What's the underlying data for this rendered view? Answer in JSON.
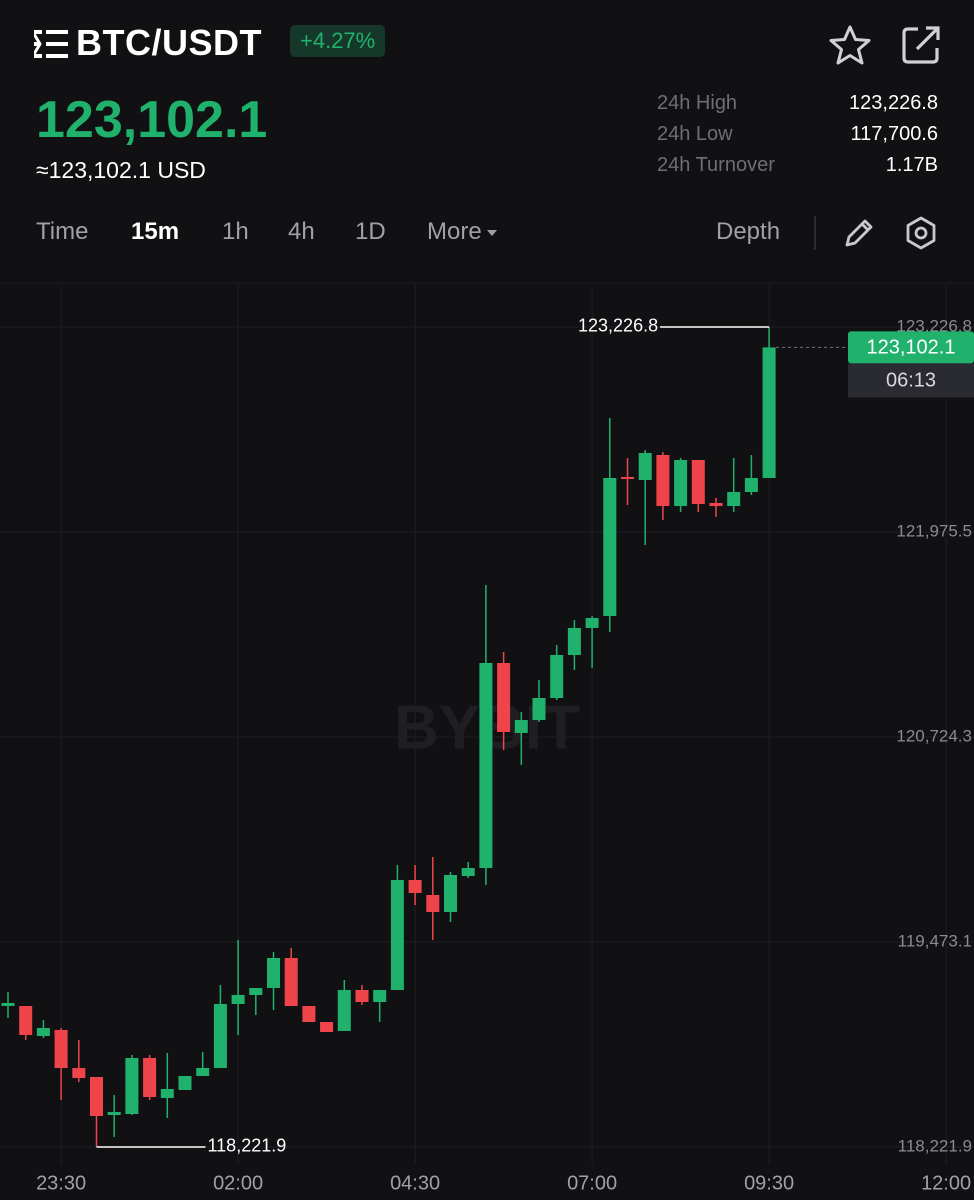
{
  "header": {
    "symbol": "BTC/USDT",
    "change": "+4.27%",
    "price": "123,102.1",
    "price_usd": "≈123,102.1 USD",
    "stats": [
      {
        "label": "24h High",
        "value": "123,226.8"
      },
      {
        "label": "24h Low",
        "value": "117,700.6"
      },
      {
        "label": "24h Turnover",
        "value": "1.17B"
      }
    ]
  },
  "toolbar": {
    "tabs": [
      "Time",
      "15m",
      "1h",
      "4h",
      "1D",
      "More"
    ],
    "active_tab": "15m",
    "depth": "Depth"
  },
  "chart_data": {
    "type": "candlestick",
    "watermark": "BYBIT",
    "up_color": "#20b26c",
    "down_color": "#ef454a",
    "grid": true,
    "categories": [
      null,
      null,
      null,
      "23:30",
      null,
      null,
      null,
      null,
      null,
      null,
      null,
      null,
      null,
      "02:00",
      null,
      null,
      null,
      null,
      null,
      null,
      null,
      null,
      null,
      "04:30",
      null,
      null,
      null,
      null,
      null,
      null,
      null,
      null,
      null,
      "07:00",
      null,
      null,
      null,
      null,
      null,
      null,
      null,
      null,
      null,
      "09:30",
      null,
      null,
      null,
      null,
      null,
      null,
      null,
      null,
      null,
      "12:00"
    ],
    "open": [
      119082.5,
      119082.5,
      118899.4,
      118936.0,
      118704.1,
      118649.1,
      118417.2,
      118423.3,
      118765.1,
      118521.0,
      118569.8,
      118655.2,
      118704.1,
      119094.7,
      119149.6,
      119192.3,
      119375.4,
      119082.5,
      118984.8,
      118929.9,
      119180.1,
      119106.9,
      119180.1,
      119851.5,
      119760.0,
      119656.2,
      119875.9,
      119924.7,
      121175.9,
      120748.7,
      120828.1,
      120962.3,
      121224.8,
      121389.6,
      121462.8,
      122311.2,
      122292.9,
      122445.5,
      122134.2,
      122414.9,
      122152.5,
      122134.2,
      122219.6,
      122305.1,
      null,
      null,
      null,
      null,
      null,
      null,
      null,
      null,
      null,
      null
    ],
    "high": [
      119167.9,
      119082.5,
      118997.0,
      118948.2,
      118875.0,
      118649.1,
      118539.3,
      118783.4,
      118783.4,
      118795.6,
      118655.2,
      118801.7,
      119210.7,
      119485.3,
      119192.3,
      119412.1,
      119436.5,
      119082.5,
      118984.8,
      119241.2,
      119210.7,
      119180.1,
      119943.1,
      119943.1,
      119991.9,
      119900.3,
      119961.4,
      121652.0,
      121243.1,
      120876.9,
      121072.2,
      121285.8,
      121438.4,
      121462.8,
      122671.3,
      122427.1,
      122476.0,
      122463.8,
      122427.1,
      122414.9,
      122183.0,
      122427.1,
      122445.5,
      123226.8,
      null,
      null,
      null,
      null,
      null,
      null,
      null,
      null,
      null,
      null
    ],
    "low": [
      119009.2,
      118875.0,
      118887.2,
      118508.8,
      118618.6,
      118221.9,
      118282.9,
      118417.2,
      118508.8,
      118398.9,
      118569.8,
      118655.2,
      118704.1,
      118905.5,
      119027.5,
      119058.1,
      119082.5,
      118984.8,
      118923.8,
      118929.9,
      119088.6,
      118984.8,
      119180.1,
      119698.9,
      119485.3,
      119595.2,
      119863.7,
      119821.0,
      120644.9,
      120553.4,
      120815.8,
      120950.1,
      121133.2,
      121145.4,
      121365.2,
      122140.3,
      121896.1,
      122048.7,
      122097.6,
      122097.6,
      122067.0,
      122097.6,
      122201.3,
      122305.1,
      null,
      null,
      null,
      null,
      null,
      null,
      null,
      null,
      null,
      null
    ],
    "close": [
      119100.8,
      118905.5,
      118948.2,
      118704.1,
      118643.0,
      118411.1,
      118435.5,
      118765.1,
      118527.1,
      118575.9,
      118655.2,
      118704.1,
      119094.7,
      119149.6,
      119192.3,
      119375.4,
      119082.5,
      118984.8,
      118923.8,
      119180.1,
      119106.9,
      119180.1,
      119851.5,
      119772.2,
      119656.2,
      119882.0,
      119924.7,
      121175.9,
      120754.8,
      120828.1,
      120962.3,
      121224.8,
      121389.6,
      121450.6,
      122305.1,
      122299.0,
      122457.7,
      122134.2,
      122414.9,
      122146.4,
      122134.2,
      122219.6,
      122305.1,
      123102.1,
      null,
      null,
      null,
      null,
      null,
      null,
      null,
      null,
      null,
      null
    ],
    "ylim": [
      118112.0,
      123483.0
    ],
    "yticks": [
      {
        "value": 118221.9,
        "label": "118,221.9"
      },
      {
        "value": 119473.1,
        "label": "119,473.1"
      },
      {
        "value": 120724.3,
        "label": "120,724.3"
      },
      {
        "value": 121975.5,
        "label": "121,975.5"
      },
      {
        "value": 123226.8,
        "label": "123,226.8"
      }
    ],
    "high_marker": {
      "index": 43,
      "value": 123226.8,
      "label": "123,226.8"
    },
    "low_marker": {
      "index": 5,
      "value": 118221.9,
      "label": "118,221.9"
    },
    "last_price": {
      "value": 123102.1,
      "label": "123,102.1"
    },
    "countdown": "06:13"
  }
}
